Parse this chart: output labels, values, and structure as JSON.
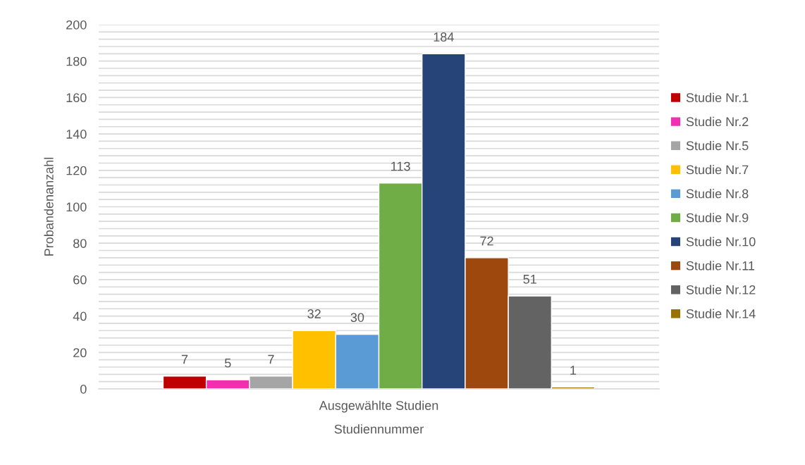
{
  "chart_data": {
    "type": "bar",
    "categories": [
      "Ausgewählte Studien"
    ],
    "xlabel": "Studiennummer",
    "ylabel": "Probandenanzahl",
    "series": [
      {
        "name": "Studie Nr.1",
        "color": "#c00000",
        "values": [
          7
        ]
      },
      {
        "name": "Studie Nr.2",
        "color": "#f12fb0",
        "values": [
          5
        ]
      },
      {
        "name": "Studie Nr.5",
        "color": "#a5a5a5",
        "values": [
          7
        ]
      },
      {
        "name": "Studie Nr.7",
        "color": "#ffc000",
        "values": [
          32
        ]
      },
      {
        "name": "Studie Nr.8",
        "color": "#5b9bd5",
        "values": [
          30
        ]
      },
      {
        "name": "Studie Nr.9",
        "color": "#70ad47",
        "values": [
          113
        ]
      },
      {
        "name": "Studie Nr.10",
        "color": "#264478",
        "values": [
          184
        ]
      },
      {
        "name": "Studie Nr.11",
        "color": "#9e480e",
        "values": [
          72
        ]
      },
      {
        "name": "Studie Nr.12",
        "color": "#636363",
        "values": [
          51
        ]
      },
      {
        "name": "Studie Nr.14",
        "color": "#997300",
        "values": [
          1
        ]
      }
    ],
    "ylim": [
      0,
      200
    ],
    "yticks": [
      0,
      {
        "value": 4,
        "label": null
      },
      {
        "value": 8,
        "label": null
      },
      {
        "value": 12,
        "label": null
      },
      {
        "value": 16,
        "label": null
      },
      20,
      {
        "value": 24,
        "label": null
      },
      {
        "value": 28,
        "label": null
      },
      {
        "value": 32,
        "label": null
      },
      {
        "value": 36,
        "label": null
      },
      40,
      {
        "value": 44,
        "label": null
      },
      {
        "value": 48,
        "label": null
      },
      {
        "value": 52,
        "label": null
      },
      {
        "value": 56,
        "label": null
      },
      60,
      {
        "value": 64,
        "label": null
      },
      {
        "value": 68,
        "label": null
      },
      {
        "value": 72,
        "label": null
      },
      {
        "value": 76,
        "label": null
      },
      80,
      {
        "value": 84,
        "label": null
      },
      {
        "value": 88,
        "label": null
      },
      {
        "value": 92,
        "label": null
      },
      {
        "value": 96,
        "label": null
      },
      100,
      {
        "value": 104,
        "label": null
      },
      {
        "value": 108,
        "label": null
      },
      {
        "value": 112,
        "label": null
      },
      {
        "value": 116,
        "label": null
      },
      120,
      {
        "value": 124,
        "label": null
      },
      {
        "value": 128,
        "label": null
      },
      {
        "value": 132,
        "label": null
      },
      {
        "value": 136,
        "label": null
      },
      140,
      {
        "value": 144,
        "label": null
      },
      {
        "value": 148,
        "label": null
      },
      {
        "value": 152,
        "label": null
      },
      {
        "value": 156,
        "label": null
      },
      160,
      {
        "value": 164,
        "label": null
      },
      {
        "value": 168,
        "label": null
      },
      {
        "value": 172,
        "label": null
      },
      {
        "value": 176,
        "label": null
      },
      180,
      {
        "value": 184,
        "label": null
      },
      {
        "value": 188,
        "label": null
      },
      {
        "value": 192,
        "label": null
      },
      {
        "value": 196,
        "label": null
      },
      200
    ],
    "grid": "y",
    "legend": "right",
    "data_labels": true
  }
}
